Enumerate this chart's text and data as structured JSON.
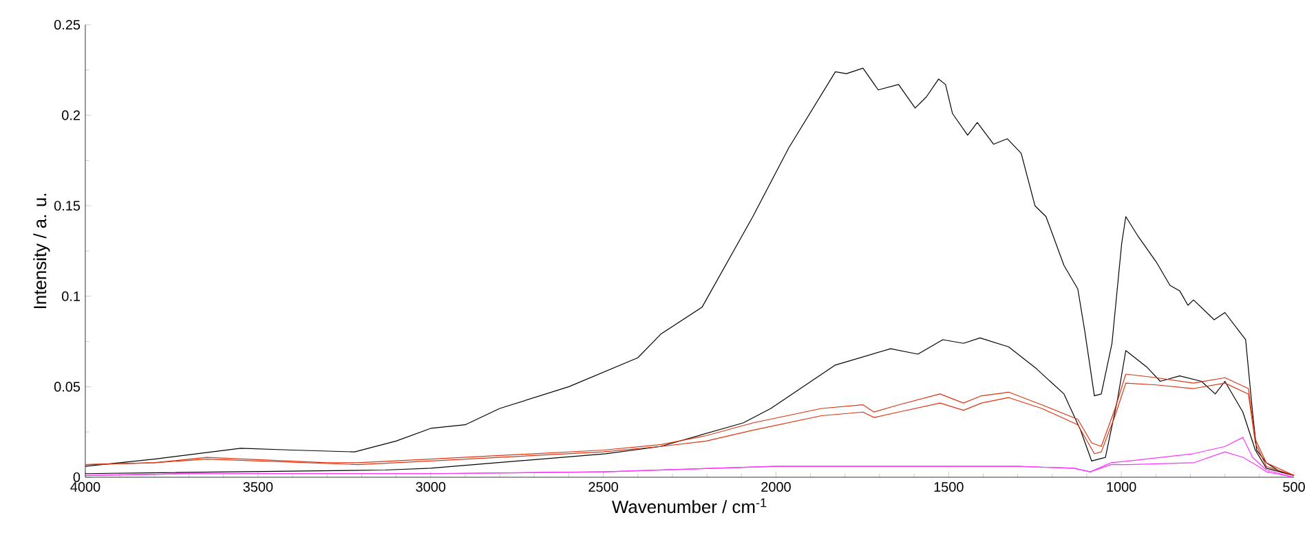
{
  "chart_data": {
    "type": "line",
    "xlabel": "Wavenumber / cm$^{-1}$",
    "ylabel": "Intensity / a. u.",
    "xlim": [
      4000,
      500
    ],
    "xticks": [
      4000,
      3500,
      3000,
      2500,
      2000,
      1500,
      1000,
      500
    ],
    "ylim": [
      0,
      0.25
    ],
    "yticks": [
      0,
      0.05,
      0.1,
      0.15,
      0.2,
      0.25
    ],
    "grid": false,
    "legend": false,
    "marker": "none",
    "line_style": "solid",
    "series": [
      {
        "color": "#000000",
        "x": [
          4000,
          3800,
          3550,
          3400,
          3220,
          3100,
          3000,
          2900,
          2800,
          2600,
          2400,
          2334,
          2214,
          2067,
          1963,
          1828,
          1796,
          1748,
          1704,
          1645,
          1597,
          1565,
          1529,
          1509,
          1489,
          1445,
          1417,
          1370,
          1330,
          1290,
          1250,
          1218,
          1166,
          1126,
          1106,
          1078,
          1058,
          1027,
          999,
          987,
          951,
          899,
          859,
          831,
          807,
          791,
          731,
          700,
          660,
          640,
          620,
          608,
          580,
          540,
          500
        ],
        "values": [
          0.006,
          0.01,
          0.016,
          0.015,
          0.014,
          0.02,
          0.027,
          0.029,
          0.038,
          0.05,
          0.066,
          0.079,
          0.094,
          0.144,
          0.182,
          0.224,
          0.223,
          0.226,
          0.214,
          0.217,
          0.204,
          0.21,
          0.22,
          0.217,
          0.201,
          0.189,
          0.196,
          0.184,
          0.187,
          0.179,
          0.15,
          0.144,
          0.117,
          0.104,
          0.081,
          0.045,
          0.046,
          0.074,
          0.129,
          0.144,
          0.133,
          0.119,
          0.106,
          0.103,
          0.095,
          0.098,
          0.087,
          0.091,
          0.081,
          0.076,
          0.036,
          0.015,
          0.008,
          0.003,
          0.001
        ]
      },
      {
        "color": "#000000",
        "x": [
          4000,
          3131,
          3000,
          2493,
          2334,
          2095,
          2015,
          1828,
          1668,
          1589,
          1517,
          1457,
          1409,
          1326,
          1246,
          1166,
          1118,
          1086,
          1046,
          1011,
          987,
          927,
          887,
          831,
          768,
          728,
          700,
          648,
          612,
          580,
          500
        ],
        "values": [
          0.002,
          0.004,
          0.005,
          0.013,
          0.017,
          0.03,
          0.038,
          0.062,
          0.071,
          0.068,
          0.076,
          0.074,
          0.077,
          0.072,
          0.06,
          0.046,
          0.026,
          0.009,
          0.011,
          0.043,
          0.07,
          0.061,
          0.053,
          0.056,
          0.053,
          0.046,
          0.053,
          0.036,
          0.015,
          0.005,
          0.001
        ]
      },
      {
        "color": "#dd3311",
        "x": [
          4000,
          3800,
          3649,
          3300,
          3211,
          3000,
          2500,
          2334,
          2202,
          2067,
          1868,
          1748,
          1716,
          1645,
          1525,
          1457,
          1405,
          1326,
          1230,
          1126,
          1086,
          1058,
          1018,
          987,
          899,
          791,
          700,
          632,
          612,
          580,
          500
        ],
        "values": [
          0.007,
          0.008,
          0.011,
          0.008,
          0.008,
          0.01,
          0.015,
          0.018,
          0.023,
          0.03,
          0.038,
          0.04,
          0.036,
          0.04,
          0.046,
          0.041,
          0.045,
          0.047,
          0.04,
          0.032,
          0.019,
          0.017,
          0.038,
          0.057,
          0.055,
          0.052,
          0.055,
          0.049,
          0.021,
          0.008,
          0.001
        ]
      },
      {
        "color": "#dd3311",
        "x": [
          4000,
          3800,
          3649,
          3211,
          3000,
          2500,
          2334,
          2202,
          2067,
          1868,
          1748,
          1716,
          1645,
          1525,
          1457,
          1405,
          1326,
          1230,
          1126,
          1078,
          1058,
          1018,
          987,
          899,
          791,
          700,
          632,
          612,
          580,
          500
        ],
        "values": [
          0.007,
          0.008,
          0.01,
          0.007,
          0.009,
          0.014,
          0.017,
          0.02,
          0.026,
          0.034,
          0.036,
          0.033,
          0.036,
          0.041,
          0.037,
          0.041,
          0.044,
          0.038,
          0.029,
          0.013,
          0.014,
          0.034,
          0.052,
          0.051,
          0.049,
          0.052,
          0.046,
          0.019,
          0.006,
          0.001
        ]
      },
      {
        "color": "#ff33ff",
        "x": [
          4000,
          3700,
          3000,
          2500,
          2003,
          1300,
          1138,
          1090,
          1030,
          979,
          791,
          700,
          648,
          620,
          580,
          500
        ],
        "values": [
          0.001,
          0.002,
          0.002,
          0.003,
          0.006,
          0.006,
          0.005,
          0.003,
          0.008,
          0.009,
          0.013,
          0.017,
          0.022,
          0.011,
          0.004,
          0.0
        ]
      },
      {
        "color": "#ff33ff",
        "x": [
          4000,
          3700,
          3000,
          2500,
          2003,
          1300,
          1138,
          1090,
          1030,
          979,
          791,
          700,
          648,
          612,
          580,
          500
        ],
        "values": [
          0.001,
          0.002,
          0.002,
          0.003,
          0.006,
          0.006,
          0.005,
          0.003,
          0.007,
          0.007,
          0.008,
          0.014,
          0.011,
          0.007,
          0.003,
          0.0
        ]
      }
    ]
  }
}
